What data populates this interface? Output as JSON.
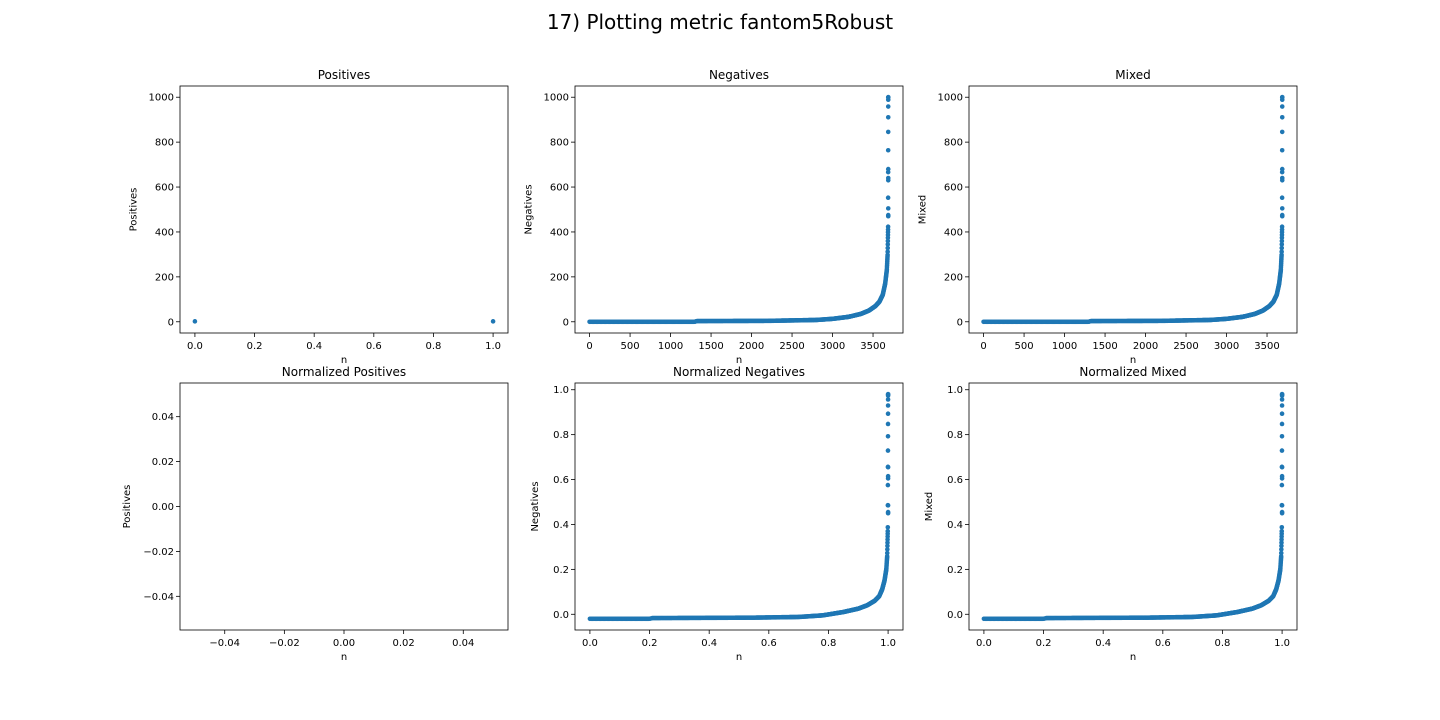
{
  "figure": {
    "suptitle": "17) Plotting metric fantom5Robust",
    "marker_color": "#1f77b4"
  },
  "chart_data": [
    {
      "type": "scatter",
      "title": "Positives",
      "xlabel": "n",
      "ylabel": "Positives",
      "xlim": [
        -0.05,
        1.05
      ],
      "ylim": [
        -50,
        1050
      ],
      "xticks": [
        0.0,
        0.2,
        0.4,
        0.6,
        0.8,
        1.0
      ],
      "xticklabels": [
        "0.0",
        "0.2",
        "0.4",
        "0.6",
        "0.8",
        "1.0"
      ],
      "yticks": [
        0,
        200,
        400,
        600,
        800,
        1000
      ],
      "yticklabels": [
        "0",
        "200",
        "400",
        "600",
        "800",
        "1000"
      ],
      "x": [
        0,
        1
      ],
      "y": [
        2,
        2
      ]
    },
    {
      "type": "scatter",
      "title": "Negatives",
      "xlabel": "n",
      "ylabel": "Negatives",
      "xlim": [
        -180,
        3870
      ],
      "ylim": [
        -50,
        1050
      ],
      "xticks": [
        0,
        500,
        1000,
        1500,
        2000,
        2500,
        3000,
        3500
      ],
      "xticklabels": [
        "0",
        "500",
        "1000",
        "1500",
        "2000",
        "2500",
        "3000",
        "3500"
      ],
      "yticks": [
        0,
        200,
        400,
        600,
        800,
        1000
      ],
      "yticklabels": [
        "0",
        "200",
        "400",
        "600",
        "800",
        "1000"
      ],
      "curve": {
        "n_max": 3688,
        "knots_x": [
          0,
          1300,
          1320,
          2200,
          2800,
          3000,
          3200,
          3350,
          3450,
          3530,
          3580,
          3620,
          3650,
          3670,
          3680,
          3686,
          3688
        ],
        "knots_y": [
          0,
          0,
          3,
          4,
          8,
          13,
          22,
          35,
          50,
          70,
          90,
          120,
          170,
          230,
          300,
          420,
          1000
        ]
      },
      "outliers": {
        "x": [
          3688,
          3688,
          3688,
          3688,
          3688,
          3688,
          3688
        ],
        "y": [
          1000,
          680,
          640,
          630,
          505,
          475,
          470
        ]
      }
    },
    {
      "type": "scatter",
      "title": "Mixed",
      "xlabel": "n",
      "ylabel": "Mixed",
      "xlim": [
        -180,
        3870
      ],
      "ylim": [
        -50,
        1050
      ],
      "xticks": [
        0,
        500,
        1000,
        1500,
        2000,
        2500,
        3000,
        3500
      ],
      "xticklabels": [
        "0",
        "500",
        "1000",
        "1500",
        "2000",
        "2500",
        "3000",
        "3500"
      ],
      "yticks": [
        0,
        200,
        400,
        600,
        800,
        1000
      ],
      "yticklabels": [
        "0",
        "200",
        "400",
        "600",
        "800",
        "1000"
      ],
      "curve": {
        "n_max": 3688,
        "knots_x": [
          0,
          1300,
          1320,
          2200,
          2800,
          3000,
          3200,
          3350,
          3450,
          3530,
          3580,
          3620,
          3650,
          3670,
          3680,
          3686,
          3688
        ],
        "knots_y": [
          0,
          0,
          3,
          4,
          8,
          13,
          22,
          35,
          50,
          70,
          90,
          120,
          170,
          230,
          300,
          420,
          1000
        ]
      },
      "outliers": {
        "x": [
          3688,
          3688,
          3688,
          3688,
          3688,
          3688,
          3688
        ],
        "y": [
          1000,
          680,
          640,
          630,
          505,
          475,
          470
        ]
      }
    },
    {
      "type": "scatter",
      "title": "Normalized Positives",
      "xlabel": "n",
      "ylabel": "Positives",
      "xlim": [
        -0.055,
        0.055
      ],
      "ylim": [
        -0.055,
        0.055
      ],
      "xticks": [
        -0.04,
        -0.02,
        0.0,
        0.02,
        0.04
      ],
      "xticklabels": [
        "−0.04",
        "−0.02",
        "0.00",
        "0.02",
        "0.04"
      ],
      "yticks": [
        -0.04,
        -0.02,
        0.0,
        0.02,
        0.04
      ],
      "yticklabels": [
        "−0.04",
        "−0.02",
        "0.00",
        "0.02",
        "0.04"
      ],
      "x": [],
      "y": []
    },
    {
      "type": "scatter",
      "title": "Normalized Negatives",
      "xlabel": "n",
      "ylabel": "Negatives",
      "xlim": [
        -0.05,
        1.05
      ],
      "ylim": [
        -0.07,
        1.03
      ],
      "xticks": [
        0.0,
        0.2,
        0.4,
        0.6,
        0.8,
        1.0
      ],
      "xticklabels": [
        "0.0",
        "0.2",
        "0.4",
        "0.6",
        "0.8",
        "1.0"
      ],
      "yticks": [
        0.0,
        0.2,
        0.4,
        0.6,
        0.8,
        1.0
      ],
      "yticklabels": [
        "0.0",
        "0.2",
        "0.4",
        "0.6",
        "0.8",
        "1.0"
      ],
      "curve": {
        "n_max": 1.0,
        "knots_x": [
          0,
          0.2,
          0.21,
          0.55,
          0.7,
          0.78,
          0.85,
          0.9,
          0.93,
          0.955,
          0.97,
          0.98,
          0.988,
          0.994,
          0.997,
          0.999,
          1.0
        ],
        "knots_y": [
          -0.02,
          -0.02,
          -0.017,
          -0.015,
          -0.012,
          -0.005,
          0.01,
          0.025,
          0.04,
          0.06,
          0.08,
          0.11,
          0.15,
          0.2,
          0.26,
          0.38,
          0.98
        ]
      },
      "outliers": {
        "x": [
          1.0,
          1.0,
          1.0,
          1.0,
          1.0,
          1.0,
          1.0
        ],
        "y": [
          0.98,
          0.655,
          0.615,
          0.605,
          0.485,
          0.455,
          0.45
        ]
      }
    },
    {
      "type": "scatter",
      "title": "Normalized Mixed",
      "xlabel": "n",
      "ylabel": "Mixed",
      "xlim": [
        -0.05,
        1.05
      ],
      "ylim": [
        -0.07,
        1.03
      ],
      "xticks": [
        0.0,
        0.2,
        0.4,
        0.6,
        0.8,
        1.0
      ],
      "xticklabels": [
        "0.0",
        "0.2",
        "0.4",
        "0.6",
        "0.8",
        "1.0"
      ],
      "yticks": [
        0.0,
        0.2,
        0.4,
        0.6,
        0.8,
        1.0
      ],
      "yticklabels": [
        "0.0",
        "0.2",
        "0.4",
        "0.6",
        "0.8",
        "1.0"
      ],
      "curve": {
        "n_max": 1.0,
        "knots_x": [
          0,
          0.2,
          0.21,
          0.55,
          0.7,
          0.78,
          0.85,
          0.9,
          0.93,
          0.955,
          0.97,
          0.98,
          0.988,
          0.994,
          0.997,
          0.999,
          1.0
        ],
        "knots_y": [
          -0.02,
          -0.02,
          -0.017,
          -0.015,
          -0.012,
          -0.005,
          0.01,
          0.025,
          0.04,
          0.06,
          0.08,
          0.11,
          0.15,
          0.2,
          0.26,
          0.38,
          0.98
        ]
      },
      "outliers": {
        "x": [
          1.0,
          1.0,
          1.0,
          1.0,
          1.0,
          1.0,
          1.0
        ],
        "y": [
          0.98,
          0.655,
          0.615,
          0.605,
          0.485,
          0.455,
          0.45
        ]
      }
    }
  ]
}
